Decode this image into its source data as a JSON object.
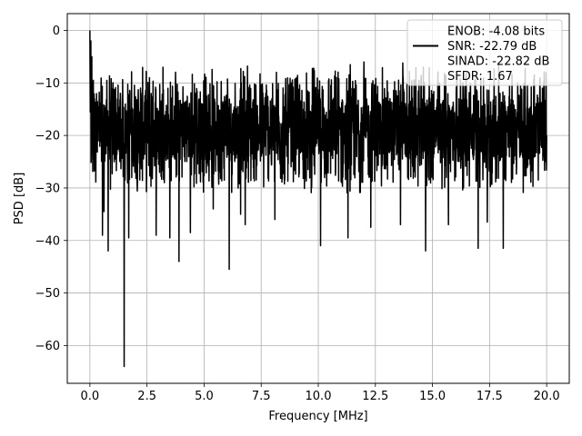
{
  "chart_data": {
    "type": "line",
    "title": "",
    "xlabel": "Frequency [MHz]",
    "ylabel": "PSD [dB]",
    "xlim": [
      -0.99,
      20.99
    ],
    "ylim": [
      -67.2,
      3.2
    ],
    "xticks": [
      0.0,
      2.5,
      5.0,
      7.5,
      10.0,
      12.5,
      15.0,
      17.5,
      20.0
    ],
    "xtick_labels": [
      "0.0",
      "2.5",
      "5.0",
      "7.5",
      "10.0",
      "12.5",
      "15.0",
      "17.5",
      "20.0"
    ],
    "yticks": [
      0,
      -10,
      -20,
      -30,
      -40,
      -50,
      -60
    ],
    "ytick_labels": [
      "0",
      "−10",
      "−20",
      "−30",
      "−40",
      "−50",
      "−60"
    ],
    "grid": true,
    "legend_position": "top-right",
    "legend": [
      {
        "label": "ENOB: -4.08 bits",
        "style": "blank"
      },
      {
        "label": "SNR: -22.79 dB",
        "style": "line"
      },
      {
        "label": "SINAD: -22.82 dB",
        "style": "blank"
      },
      {
        "label": "SFDR: 1.67",
        "style": "blank"
      }
    ],
    "series": [
      {
        "color": "#000000",
        "x_range": [
          0,
          20
        ],
        "noise_band_db": [
          -31,
          -7
        ],
        "typical_db": -19,
        "features": [
          {
            "x": 0.0,
            "y": 0.0
          },
          {
            "x": 0.04,
            "y": -2.0
          },
          {
            "x": 0.08,
            "y": -5.0
          },
          {
            "x": 0.15,
            "y": -9.5
          },
          {
            "x": 0.2,
            "y": -13.0
          },
          {
            "x": 0.55,
            "y": -39.0
          },
          {
            "x": 0.62,
            "y": -34.5
          },
          {
            "x": 0.8,
            "y": -42.0
          },
          {
            "x": 1.5,
            "y": -64.0
          },
          {
            "x": 1.7,
            "y": -39.5
          },
          {
            "x": 2.9,
            "y": -39.0
          },
          {
            "x": 3.5,
            "y": -39.5
          },
          {
            "x": 3.9,
            "y": -44.0
          },
          {
            "x": 4.4,
            "y": -38.5
          },
          {
            "x": 5.4,
            "y": -34.0
          },
          {
            "x": 6.1,
            "y": -45.5
          },
          {
            "x": 6.6,
            "y": -35.0
          },
          {
            "x": 6.8,
            "y": -37.0
          },
          {
            "x": 8.1,
            "y": -36.0
          },
          {
            "x": 10.1,
            "y": -41.0
          },
          {
            "x": 11.3,
            "y": -39.5
          },
          {
            "x": 12.3,
            "y": -37.5
          },
          {
            "x": 13.6,
            "y": -37.0
          },
          {
            "x": 14.7,
            "y": -42.0
          },
          {
            "x": 15.7,
            "y": -37.0
          },
          {
            "x": 17.0,
            "y": -41.5
          },
          {
            "x": 17.4,
            "y": -36.5
          },
          {
            "x": 18.1,
            "y": -41.5
          },
          {
            "x": 3.2,
            "y": -7.0
          },
          {
            "x": 6.9,
            "y": -6.8
          },
          {
            "x": 9.8,
            "y": -7.2
          },
          {
            "x": 11.4,
            "y": -6.5
          },
          {
            "x": 12.0,
            "y": -6.0
          },
          {
            "x": 13.7,
            "y": -6.2
          },
          {
            "x": 14.6,
            "y": -7.0
          },
          {
            "x": 17.9,
            "y": -6.5
          },
          {
            "x": 19.7,
            "y": -10.5
          },
          {
            "x": 20.0,
            "y": -20.0
          }
        ]
      }
    ]
  }
}
